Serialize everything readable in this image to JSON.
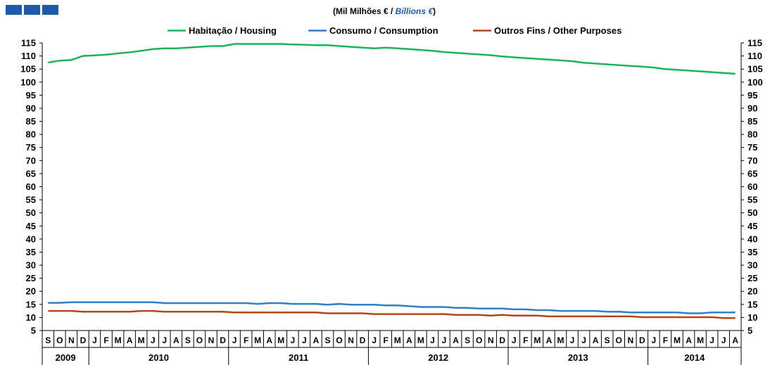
{
  "header": {
    "subtitle_pt": "(Mil Milhões € / ",
    "subtitle_en": "Billions €",
    "subtitle_close": ")"
  },
  "chart_data": {
    "type": "line",
    "ylim": [
      5,
      115
    ],
    "yticks": [
      5,
      10,
      15,
      20,
      25,
      30,
      35,
      40,
      45,
      50,
      55,
      60,
      65,
      70,
      75,
      80,
      85,
      90,
      95,
      100,
      105,
      110,
      115
    ],
    "grid": false,
    "legend_position": "top",
    "months": [
      "S",
      "O",
      "N",
      "D",
      "J",
      "F",
      "M",
      "A",
      "M",
      "J",
      "J",
      "A",
      "S",
      "O",
      "N",
      "D",
      "J",
      "F",
      "M",
      "A",
      "M",
      "J",
      "J",
      "A",
      "S",
      "O",
      "N",
      "D",
      "J",
      "F",
      "M",
      "A",
      "M",
      "J",
      "J",
      "A",
      "S",
      "O",
      "N",
      "D",
      "J",
      "F",
      "M",
      "A",
      "M",
      "J",
      "J",
      "A",
      "S",
      "O",
      "N",
      "D",
      "J",
      "F",
      "M",
      "A",
      "M",
      "J",
      "J",
      "A"
    ],
    "years": [
      {
        "label": "2009",
        "start": 0,
        "count": 4
      },
      {
        "label": "2010",
        "start": 4,
        "count": 12
      },
      {
        "label": "2011",
        "start": 16,
        "count": 12
      },
      {
        "label": "2012",
        "start": 28,
        "count": 12
      },
      {
        "label": "2013",
        "start": 40,
        "count": 12
      },
      {
        "label": "2014",
        "start": 52,
        "count": 8
      }
    ],
    "series": [
      {
        "name": "Habitação / Housing",
        "color": "#1fb25a",
        "values": [
          107.5,
          108.2,
          108.5,
          110.0,
          110.2,
          110.5,
          111.0,
          111.4,
          112.0,
          112.6,
          112.9,
          112.9,
          113.2,
          113.5,
          113.8,
          113.8,
          114.6,
          114.6,
          114.6,
          114.6,
          114.6,
          114.4,
          114.3,
          114.1,
          114.1,
          113.8,
          113.5,
          113.2,
          112.9,
          113.2,
          112.9,
          112.6,
          112.3,
          112.0,
          111.5,
          111.2,
          110.9,
          110.6,
          110.3,
          109.8,
          109.5,
          109.2,
          108.9,
          108.6,
          108.3,
          108.0,
          107.4,
          107.1,
          106.8,
          106.5,
          106.2,
          105.9,
          105.6,
          105.0,
          104.7,
          104.4,
          104.1,
          103.8,
          103.5,
          103.2
        ]
      },
      {
        "name": "Consumo / Consumption",
        "color": "#2f80c8",
        "values": [
          15.6,
          15.6,
          15.8,
          15.8,
          15.8,
          15.8,
          15.8,
          15.8,
          15.8,
          15.8,
          15.5,
          15.5,
          15.5,
          15.5,
          15.5,
          15.5,
          15.5,
          15.5,
          15.2,
          15.5,
          15.5,
          15.2,
          15.2,
          15.2,
          14.9,
          15.2,
          14.9,
          14.9,
          14.9,
          14.6,
          14.6,
          14.3,
          14.0,
          14.0,
          14.0,
          13.7,
          13.7,
          13.4,
          13.4,
          13.4,
          13.1,
          13.1,
          12.8,
          12.8,
          12.5,
          12.5,
          12.5,
          12.5,
          12.2,
          12.2,
          11.9,
          11.9,
          11.9,
          11.9,
          11.9,
          11.6,
          11.6,
          11.9,
          11.9,
          11.9
        ]
      },
      {
        "name": "Outros Fins / Other Purposes",
        "color": "#b4451e",
        "values": [
          12.5,
          12.5,
          12.5,
          12.2,
          12.2,
          12.2,
          12.2,
          12.2,
          12.5,
          12.5,
          12.2,
          12.2,
          12.2,
          12.2,
          12.2,
          12.2,
          11.9,
          11.9,
          11.9,
          11.9,
          11.9,
          11.9,
          11.9,
          11.9,
          11.6,
          11.6,
          11.6,
          11.6,
          11.3,
          11.3,
          11.3,
          11.3,
          11.3,
          11.3,
          11.3,
          11.0,
          11.0,
          11.0,
          10.7,
          11.0,
          10.7,
          10.7,
          10.7,
          10.4,
          10.4,
          10.4,
          10.4,
          10.4,
          10.4,
          10.4,
          10.4,
          10.1,
          10.1,
          10.1,
          10.1,
          10.1,
          10.1,
          10.1,
          9.8,
          9.8
        ]
      }
    ]
  }
}
